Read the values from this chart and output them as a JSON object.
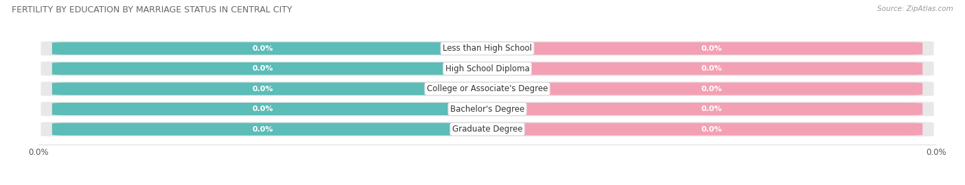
{
  "title": "FERTILITY BY EDUCATION BY MARRIAGE STATUS IN CENTRAL CITY",
  "source": "Source: ZipAtlas.com",
  "categories": [
    "Less than High School",
    "High School Diploma",
    "College or Associate's Degree",
    "Bachelor's Degree",
    "Graduate Degree"
  ],
  "married_values": [
    0.0,
    0.0,
    0.0,
    0.0,
    0.0
  ],
  "unmarried_values": [
    0.0,
    0.0,
    0.0,
    0.0,
    0.0
  ],
  "married_color": "#5bbcb8",
  "unmarried_color": "#f4a0b4",
  "row_bg_color": "#e8e8e8",
  "title_fontsize": 9,
  "source_fontsize": 7.5,
  "tick_fontsize": 8.5,
  "label_fontsize": 8,
  "category_fontsize": 8.5,
  "legend_fontsize": 9
}
